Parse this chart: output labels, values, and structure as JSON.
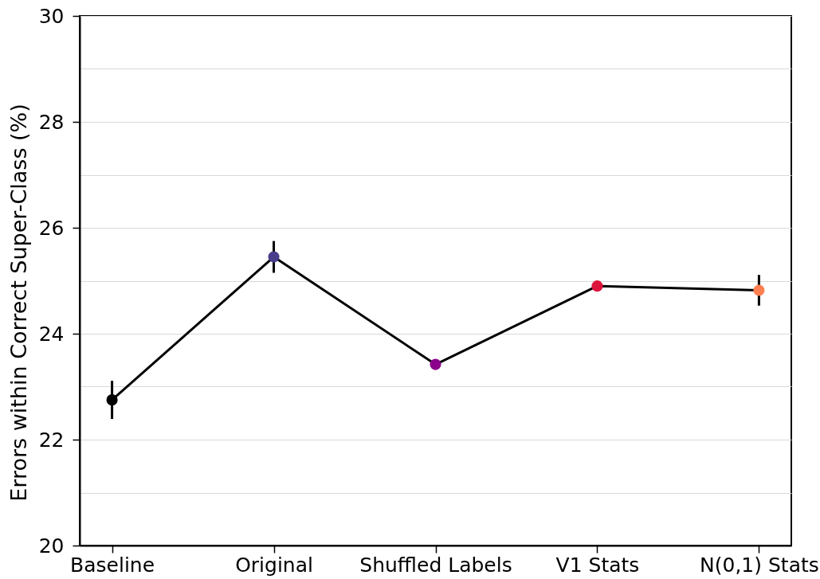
{
  "chart_data": {
    "type": "line",
    "ylabel": "Errors within Correct Super-Class (%)",
    "categories": [
      "Baseline",
      "Original",
      "Shuffled Labels",
      "V1 Stats",
      "N(0,1) Stats"
    ],
    "values": [
      22.75,
      25.45,
      23.42,
      24.9,
      24.82
    ],
    "errors": [
      0.36,
      0.3,
      null,
      null,
      0.29
    ],
    "color": "#000000",
    "colors": [
      "#000000",
      "#483d8b",
      "#8b008b",
      "#dc143c",
      "#ff7f50"
    ],
    "ylim": [
      20,
      30
    ],
    "yticks": [
      20,
      {
        "value": 21,
        "label": null
      },
      22,
      {
        "value": 23,
        "label": null
      },
      24,
      {
        "value": 25,
        "label": null
      },
      26,
      {
        "value": 27,
        "label": null
      },
      28,
      {
        "value": 29,
        "label": null
      },
      30
    ],
    "grid": "y",
    "marker": "circle",
    "line_style": "solid"
  }
}
